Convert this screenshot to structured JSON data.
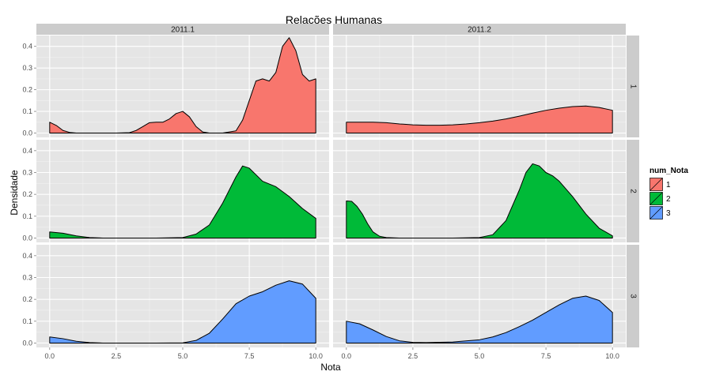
{
  "chart_data": {
    "type": "area",
    "title": "Relações Humanas",
    "xlabel": "Nota",
    "ylabel": "Densidade",
    "xlim": [
      -0.5,
      10.5
    ],
    "ylim": [
      -0.02,
      0.45
    ],
    "x_ticks": [
      "0.0",
      "2.5",
      "5.0",
      "7.5",
      "10.0"
    ],
    "x_tick_values": [
      0,
      2.5,
      5,
      7.5,
      10
    ],
    "y_ticks": [
      "0.0",
      "0.1",
      "0.2",
      "0.3",
      "0.4"
    ],
    "y_tick_values": [
      0,
      0.1,
      0.2,
      0.3,
      0.4
    ],
    "col_facets": [
      "2011.1",
      "2011.2"
    ],
    "row_facets": [
      "1",
      "2",
      "3"
    ],
    "legend": {
      "title": "num_Nota",
      "position": "right",
      "entries": [
        {
          "label": "1",
          "color": "#F8766D"
        },
        {
          "label": "2",
          "color": "#00BA38"
        },
        {
          "label": "3",
          "color": "#619CFF"
        }
      ]
    },
    "panels": [
      {
        "row": "1",
        "col": "2011.1",
        "fill": "#F8766D",
        "x": [
          0,
          0.25,
          0.5,
          0.75,
          1,
          1.5,
          2,
          2.5,
          3,
          3.25,
          3.5,
          3.75,
          4,
          4.25,
          4.5,
          4.75,
          5,
          5.25,
          5.5,
          5.75,
          6,
          6.5,
          7,
          7.25,
          7.5,
          7.75,
          8,
          8.25,
          8.5,
          8.75,
          9,
          9.25,
          9.5,
          9.75,
          10
        ],
        "y": [
          0.05,
          0.035,
          0.012,
          0.003,
          0,
          0,
          0,
          0,
          0.002,
          0.012,
          0.03,
          0.048,
          0.05,
          0.05,
          0.065,
          0.09,
          0.1,
          0.075,
          0.03,
          0.005,
          0,
          0,
          0.01,
          0.06,
          0.15,
          0.24,
          0.25,
          0.24,
          0.28,
          0.4,
          0.44,
          0.38,
          0.27,
          0.24,
          0.25
        ]
      },
      {
        "row": "1",
        "col": "2011.2",
        "fill": "#F8766D",
        "x": [
          0,
          0.5,
          1,
          1.5,
          2,
          2.5,
          3,
          3.5,
          4,
          4.5,
          5,
          5.5,
          6,
          6.5,
          7,
          7.5,
          8,
          8.5,
          9,
          9.5,
          10
        ],
        "y": [
          0.05,
          0.05,
          0.05,
          0.048,
          0.042,
          0.038,
          0.036,
          0.036,
          0.038,
          0.042,
          0.048,
          0.055,
          0.065,
          0.078,
          0.092,
          0.105,
          0.115,
          0.122,
          0.125,
          0.118,
          0.105
        ]
      },
      {
        "row": "2",
        "col": "2011.1",
        "fill": "#00BA38",
        "x": [
          0,
          0.5,
          1,
          1.5,
          2,
          3,
          4,
          5,
          5.5,
          6,
          6.5,
          7,
          7.25,
          7.5,
          8,
          8.5,
          9,
          9.5,
          10
        ],
        "y": [
          0.028,
          0.022,
          0.01,
          0.002,
          0,
          0,
          0,
          0.002,
          0.018,
          0.06,
          0.16,
          0.28,
          0.33,
          0.32,
          0.26,
          0.235,
          0.19,
          0.135,
          0.09
        ]
      },
      {
        "row": "2",
        "col": "2011.2",
        "fill": "#00BA38",
        "x": [
          0,
          0.2,
          0.4,
          0.6,
          0.8,
          1,
          1.25,
          1.5,
          2,
          3,
          4,
          5,
          5.5,
          6,
          6.5,
          6.75,
          7,
          7.25,
          7.5,
          7.75,
          8,
          8.5,
          9,
          9.5,
          10
        ],
        "y": [
          0.17,
          0.168,
          0.145,
          0.11,
          0.065,
          0.028,
          0.008,
          0.002,
          0,
          0,
          0,
          0.002,
          0.015,
          0.08,
          0.22,
          0.3,
          0.34,
          0.33,
          0.3,
          0.285,
          0.26,
          0.19,
          0.11,
          0.045,
          0.01
        ]
      },
      {
        "row": "3",
        "col": "2011.1",
        "fill": "#619CFF",
        "x": [
          0,
          0.5,
          1,
          1.5,
          2,
          3,
          4,
          5,
          5.5,
          6,
          6.5,
          7,
          7.5,
          8,
          8.5,
          9,
          9.5,
          10
        ],
        "y": [
          0.028,
          0.02,
          0.008,
          0.002,
          0,
          0,
          0,
          0.001,
          0.012,
          0.045,
          0.11,
          0.18,
          0.215,
          0.235,
          0.265,
          0.285,
          0.27,
          0.205
        ]
      },
      {
        "row": "3",
        "col": "2011.2",
        "fill": "#619CFF",
        "x": [
          0,
          0.5,
          1,
          1.5,
          2,
          2.5,
          3,
          4,
          5,
          5.5,
          6,
          6.5,
          7,
          7.5,
          8,
          8.5,
          9,
          9.5,
          10
        ],
        "y": [
          0.1,
          0.088,
          0.06,
          0.03,
          0.01,
          0.003,
          0.002,
          0.005,
          0.015,
          0.028,
          0.048,
          0.075,
          0.105,
          0.14,
          0.175,
          0.205,
          0.215,
          0.195,
          0.14
        ]
      }
    ]
  }
}
